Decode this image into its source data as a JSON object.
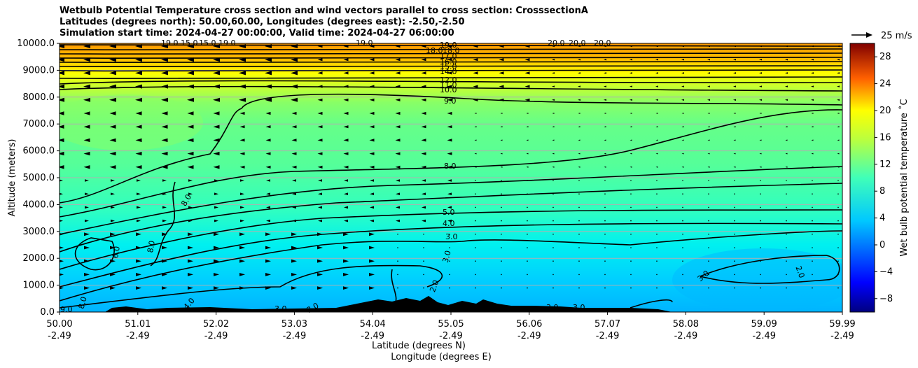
{
  "header": {
    "title_line1": "Wetbulb Potential Temperature cross section and wind vectors parallel to cross section: CrosssectionA",
    "title_line2": "Latitudes (degrees north): 50.00,60.00, Longitudes (degrees east): -2.50,-2.50",
    "title_line3": "Simulation start time: 2024-04-27 00:00:00, Valid time: 2024-04-27 06:00:00"
  },
  "chart_data": {
    "type": "heatmap",
    "ylabel": "Altitude (meters)",
    "xlabel_lat": "Latitude (degrees N)",
    "xlabel_lon": "Longitude (degrees E)",
    "ylim": [
      0,
      10000
    ],
    "xlim": [
      50.0,
      59.99
    ],
    "y_ticks": [
      "0.0",
      "1000.0",
      "2000.0",
      "3000.0",
      "4000.0",
      "5000.0",
      "6000.0",
      "7000.0",
      "8000.0",
      "9000.0",
      "10000.0"
    ],
    "x_ticks_lat": [
      "50.00",
      "51.01",
      "52.02",
      "53.03",
      "54.04",
      "55.05",
      "56.06",
      "57.07",
      "58.08",
      "59.09",
      "59.99"
    ],
    "x_ticks_lon": [
      "-2.49",
      "-2.49",
      "-2.49",
      "-2.49",
      "-2.49",
      "-2.49",
      "-2.49",
      "-2.49",
      "-2.49",
      "-2.49",
      "-2.49"
    ],
    "grid": true,
    "colorbar": {
      "label": "Wet bulb potential temperature ˚C",
      "range": [
        -10,
        30
      ],
      "ticks": [
        "-8",
        "-4",
        "0",
        "4",
        "8",
        "12",
        "16",
        "20",
        "24",
        "28"
      ]
    },
    "quiver_key": {
      "label": "25 m/s"
    },
    "contour_labels": [
      "19.0",
      "15.0",
      "15.0",
      "19.0",
      "19.0",
      "19.0",
      "20.0",
      "20.0",
      "20.0",
      "18.0",
      "18.0",
      "17.0",
      "16.0",
      "15.0",
      "14.0",
      "12.0",
      "11.0",
      "10.0",
      "9.0",
      "8.0",
      "8.0",
      "8.0",
      "6.0",
      "5.0",
      "4.0",
      "3.0",
      "3.0",
      "3.0",
      "2.0",
      "2.0",
      "9.0",
      "8.0",
      "4.0",
      "3.0",
      "3.0",
      "3.0",
      "3.0"
    ]
  }
}
